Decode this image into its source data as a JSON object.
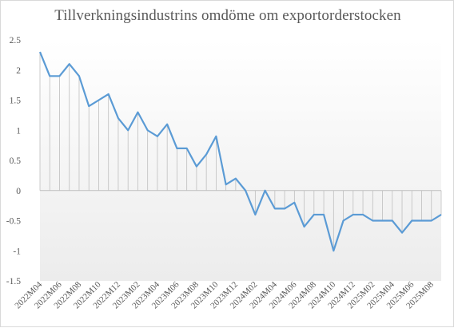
{
  "chart_data": {
    "type": "line",
    "title": "Tillverkningsindustrins omdöme om exportorderstocken",
    "xlabel": "",
    "ylabel": "",
    "ylim": [
      -1.5,
      2.5
    ],
    "yticks": [
      -1.5,
      -1,
      -0.5,
      0,
      0.5,
      1,
      1.5,
      2,
      2.5
    ],
    "ytick_labels": [
      "-1.5",
      "-1",
      "-0.5",
      "0",
      "0.5",
      "1",
      "1.5",
      "2",
      "2.5"
    ],
    "grid": false,
    "legend": "none",
    "x": [
      "2022M04",
      "2022M05",
      "2022M06",
      "2022M07",
      "2022M08",
      "2022M09",
      "2022M10",
      "2022M11",
      "2022M12",
      "2023M01",
      "2023M02",
      "2023M03",
      "2023M04",
      "2023M05",
      "2023M06",
      "2023M07",
      "2023M08",
      "2023M09",
      "2023M10",
      "2023M11",
      "2023M12",
      "2024M01",
      "2024M02",
      "2024M03",
      "2024M04",
      "2024M05",
      "2024M06",
      "2024M07",
      "2024M08",
      "2024M09",
      "2024M10",
      "2024M11",
      "2024M12",
      "2025M01",
      "2025M02",
      "2025M03",
      "2025M04",
      "2025M05",
      "2025M06",
      "2025M07",
      "2025M08",
      "2025M09"
    ],
    "xtick_labels": [
      "2022M04",
      "2022M06",
      "2022M08",
      "2022M10",
      "2022M12",
      "2023M02",
      "2023M04",
      "2023M06",
      "2023M08",
      "2023M10",
      "2023M12",
      "2024M02",
      "2024M04",
      "2024M06",
      "2024M08",
      "2024M10",
      "2024M12",
      "2025M02",
      "2025M04",
      "2025M06",
      "2025M08"
    ],
    "series": [
      {
        "values": [
          2.3,
          1.9,
          1.9,
          2.1,
          1.9,
          1.4,
          1.5,
          1.6,
          1.2,
          1.0,
          1.3,
          1.0,
          0.9,
          1.1,
          0.7,
          0.7,
          0.4,
          0.6,
          0.9,
          0.1,
          0.2,
          0.0,
          -0.4,
          0.0,
          -0.3,
          -0.3,
          -0.2,
          -0.6,
          -0.4,
          -0.4,
          -1.0,
          -0.5,
          -0.4,
          -0.4,
          -0.5,
          -0.5,
          -0.5,
          -0.7,
          -0.5,
          -0.5,
          -0.5,
          -0.4
        ]
      }
    ],
    "colors": {
      "line": "#5b9bd5",
      "droplines": "#bfbfbf",
      "axis": "#bfbfbf",
      "shade_top": "#ffffff",
      "shade_bottom": "#ececec"
    }
  }
}
